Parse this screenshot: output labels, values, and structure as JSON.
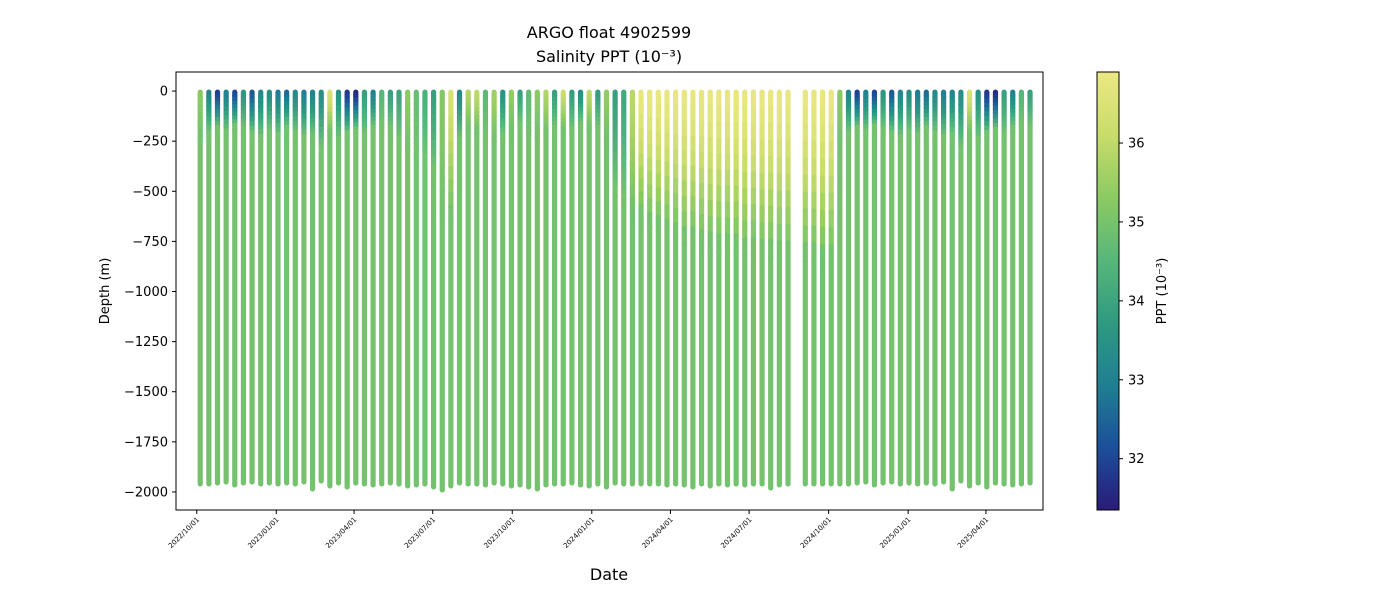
{
  "chart_data": {
    "type": "scatter",
    "title": "ARGO float 4902599",
    "subtitle": "Salinity PPT (10⁻³)",
    "xlabel": "Date",
    "ylabel": "Depth (m)",
    "colorbar_label": "PPT (10⁻³)",
    "colormap": "summer-like: navy-blue-teal-green-yellow",
    "colormap_stops": [
      "#2a1b78",
      "#1c4f9a",
      "#1f7f92",
      "#2f9a80",
      "#57b77a",
      "#8cca63",
      "#c9dc6a",
      "#ece884"
    ],
    "color_range": [
      31.35,
      36.9
    ],
    "colorbar_ticks": [
      32,
      33,
      34,
      35,
      36
    ],
    "colorbar_tick_labels": [
      "32",
      "33",
      "34",
      "35",
      "36"
    ],
    "x_range": [
      "2022-09-07",
      "2025-06-06"
    ],
    "x_ticks": [
      "2022-10-01",
      "2023-01-01",
      "2023-04-01",
      "2023-07-01",
      "2023-10-01",
      "2024-01-01",
      "2024-04-01",
      "2024-07-01",
      "2024-10-01",
      "2025-01-01",
      "2025-04-01"
    ],
    "x_tick_labels": [
      "2022/10/01",
      "2023/01/01",
      "2023/04/01",
      "2023/07/01",
      "2023/10/01",
      "2024/01/01",
      "2024/04/01",
      "2024/07/01",
      "2024/10/01",
      "2025/01/01",
      "2025/04/01"
    ],
    "ylim": [
      -2090,
      95
    ],
    "y_ticks": [
      0,
      -250,
      -500,
      -750,
      -1000,
      -1250,
      -1500,
      -1750,
      -2000
    ],
    "y_tick_labels": [
      "0",
      "−250",
      "−500",
      "−750",
      "−1000",
      "−1250",
      "−1500",
      "−1750",
      "−2000"
    ],
    "deep_salinity": 34.95,
    "profile_max_depths": [
      1960,
      1960,
      1955,
      1950,
      1965,
      1955,
      1950,
      1960,
      1955,
      1960,
      1955,
      1960,
      1950,
      1985,
      1945,
      1970,
      1955,
      1975,
      1955,
      1960,
      1965,
      1960,
      1955,
      1960,
      1970,
      1965,
      1960,
      1975,
      1990,
      1970,
      1955,
      1960,
      1960,
      1965,
      1955,
      1960,
      1970,
      1965,
      1975,
      1985,
      1965,
      1960,
      1960,
      1955,
      1965,
      1970,
      1960,
      1975,
      1955,
      1960,
      1960,
      1960,
      1960,
      1960,
      1965,
      1960,
      1965,
      1975,
      1960,
      1970,
      1960,
      1965,
      1960,
      1965,
      1960,
      1960,
      1980,
      1965,
      1960,
      1960,
      1960,
      1960,
      1960
    ],
    "surface_salinity": [
      35.3,
      33.2,
      31.9,
      33.0,
      32.0,
      33.6,
      32.3,
      33.2,
      33.4,
      32.9,
      32.6,
      33.3,
      33.0,
      33.1,
      33.4,
      36.5,
      33.5,
      31.8,
      31.6,
      33.9,
      33.0,
      34.5,
      33.9,
      34.0,
      35.3,
      34.8,
      34.3,
      33.9,
      35.2,
      36.4,
      33.3,
      35.8,
      36.0,
      34.6,
      35.6,
      33.5,
      35.4,
      33.9,
      34.7,
      35.3,
      35.8,
      33.9,
      36.2,
      33.8,
      33.4,
      36.0,
      33.8,
      35.4,
      33.9,
      34.1,
      35.9,
      36.8,
      36.8,
      36.8,
      36.8,
      36.8,
      36.8,
      36.8,
      36.8,
      36.8,
      36.8,
      36.8,
      36.8,
      36.8,
      36.8,
      36.8,
      36.8,
      36.8,
      36.8,
      36.8,
      36.8,
      36.8,
      36.8
    ],
    "upper_layer_depths": [
      250,
      230,
      200,
      220,
      190,
      210,
      230,
      250,
      220,
      240,
      200,
      230,
      250,
      240,
      310,
      220,
      260,
      230,
      210,
      240,
      200,
      180,
      200,
      260,
      300,
      290,
      360,
      420,
      620,
      640,
      260,
      190,
      210,
      230,
      250,
      240,
      200,
      180,
      220,
      230,
      210,
      200,
      200,
      210,
      180,
      190,
      200,
      240,
      520,
      560,
      600,
      640,
      680,
      700,
      720,
      740,
      760,
      760,
      780,
      790,
      800,
      800,
      800,
      820,
      820,
      830,
      830,
      840,
      840,
      850,
      850,
      860,
      860
    ],
    "series_gap": [
      "2024-08-21",
      "2024-09-04"
    ]
  }
}
